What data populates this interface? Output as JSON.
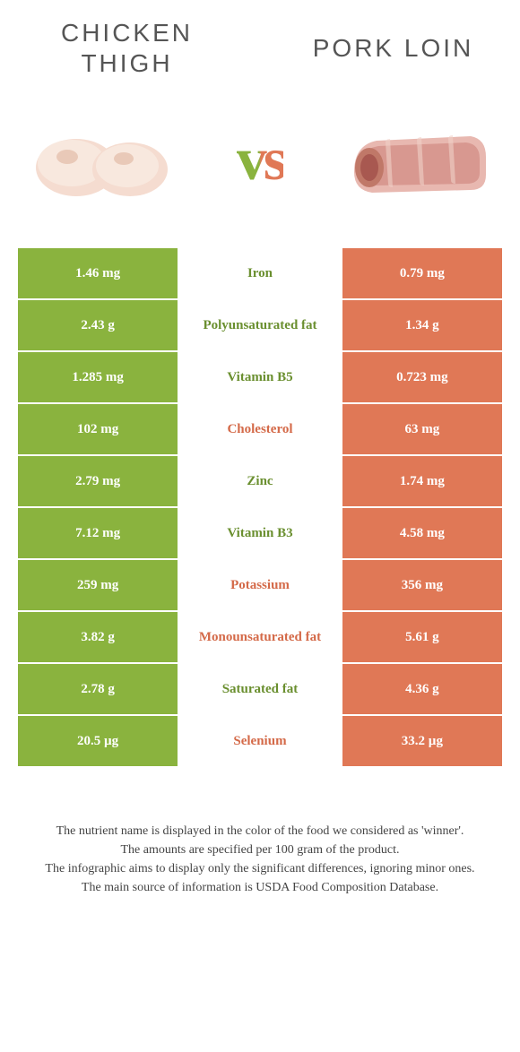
{
  "colors": {
    "left": "#8ab33e",
    "right": "#e07856",
    "left_text": "#6a8f2f",
    "right_text": "#d46a49",
    "bg": "#ffffff"
  },
  "header": {
    "left_title": "Chicken Thigh",
    "right_title": "Pork Loin",
    "vs": "vs"
  },
  "rows": [
    {
      "left": "1.46 mg",
      "label": "Iron",
      "right": "0.79 mg",
      "winner": "left"
    },
    {
      "left": "2.43 g",
      "label": "Polyunsaturated fat",
      "right": "1.34 g",
      "winner": "left"
    },
    {
      "left": "1.285 mg",
      "label": "Vitamin B5",
      "right": "0.723 mg",
      "winner": "left"
    },
    {
      "left": "102 mg",
      "label": "Cholesterol",
      "right": "63 mg",
      "winner": "right"
    },
    {
      "left": "2.79 mg",
      "label": "Zinc",
      "right": "1.74 mg",
      "winner": "left"
    },
    {
      "left": "7.12 mg",
      "label": "Vitamin B3",
      "right": "4.58 mg",
      "winner": "left"
    },
    {
      "left": "259 mg",
      "label": "Potassium",
      "right": "356 mg",
      "winner": "right"
    },
    {
      "left": "3.82 g",
      "label": "Monounsaturated fat",
      "right": "5.61 g",
      "winner": "right"
    },
    {
      "left": "2.78 g",
      "label": "Saturated fat",
      "right": "4.36 g",
      "winner": "left"
    },
    {
      "left": "20.5 µg",
      "label": "Selenium",
      "right": "33.2 µg",
      "winner": "right"
    }
  ],
  "footer": {
    "line1": "The nutrient name is displayed in the color of the food we considered as 'winner'.",
    "line2": "The amounts are specified per 100 gram of the product.",
    "line3": "The infographic aims to display only the significant differences, ignoring minor ones.",
    "line4": "The main source of information is USDA Food Composition Database."
  }
}
